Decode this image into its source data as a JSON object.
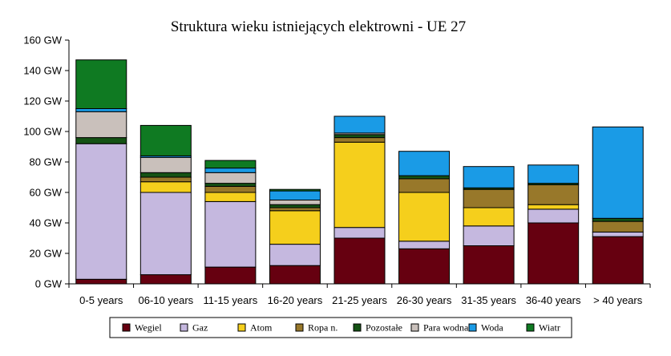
{
  "chart_data": {
    "type": "bar",
    "stacked": true,
    "title": "Struktura wieku istniejących elektrowni - UE 27",
    "categories": [
      "0-5 years",
      "06-10 years",
      "11-15 years",
      "16-20 years",
      "21-25 years",
      "26-30 years",
      "31-35 years",
      "36-40 years",
      "> 40 years"
    ],
    "y_ticks": [
      "0 GW",
      "20 GW",
      "40 GW",
      "60 GW",
      "80 GW",
      "100 GW",
      "120 GW",
      "140 GW",
      "160 GW"
    ],
    "ylim": [
      0,
      160
    ],
    "ylabel": "",
    "xlabel": "",
    "grid": false,
    "legend_position": "bottom",
    "series": [
      {
        "name": "Wegiel",
        "color": "#660010",
        "values": [
          3,
          6,
          11,
          12,
          30,
          23,
          25,
          40,
          31
        ]
      },
      {
        "name": "Gaz",
        "color": "#c5b8df",
        "values": [
          89,
          54,
          43,
          14,
          7,
          5,
          13,
          9,
          3
        ]
      },
      {
        "name": "Atom",
        "color": "#f5cf1c",
        "values": [
          0,
          7,
          6,
          22,
          56,
          32,
          12,
          3,
          0
        ]
      },
      {
        "name": "Ropa  n.",
        "color": "#98782a",
        "values": [
          0,
          3,
          4,
          2,
          3,
          9,
          12,
          13,
          7
        ]
      },
      {
        "name": "Pozostałe",
        "color": "#145214",
        "values": [
          4,
          3,
          2,
          2,
          2,
          2,
          1,
          1,
          2
        ]
      },
      {
        "name": "Para wodna",
        "color": "#c9c0bb",
        "values": [
          17,
          10,
          7,
          3,
          1,
          0,
          0,
          0,
          0
        ]
      },
      {
        "name": "Woda",
        "color": "#1a9be6",
        "values": [
          2,
          1,
          3,
          6,
          11,
          16,
          14,
          12,
          60
        ]
      },
      {
        "name": "Wiatr",
        "color": "#0f7a22",
        "values": [
          32,
          20,
          5,
          1,
          0,
          0,
          0,
          0,
          0
        ]
      }
    ]
  }
}
